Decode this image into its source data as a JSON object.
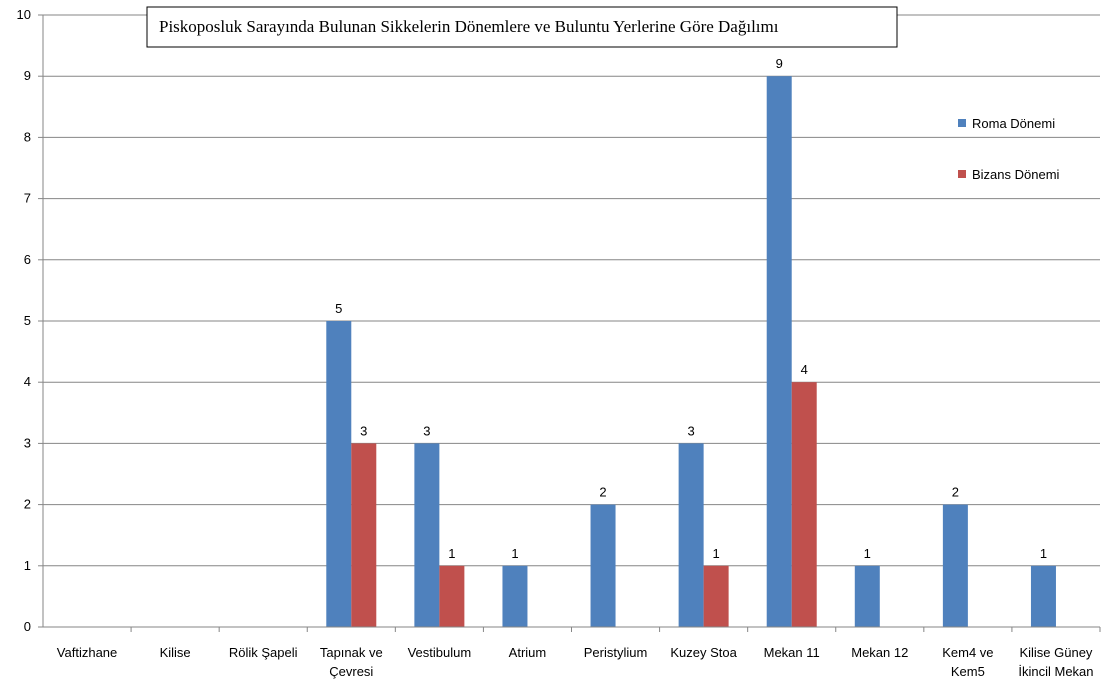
{
  "chart_data": {
    "type": "bar",
    "title": "Piskoposluk Sarayında Bulunan Sikkelerin Dönemlere ve Buluntu Yerlerine Göre Dağılımı",
    "categories": [
      [
        "Vaftizhane"
      ],
      [
        "Kilise"
      ],
      [
        "Rölik Şapeli"
      ],
      [
        "Tapınak ve",
        "Çevresi"
      ],
      [
        "Vestibulum"
      ],
      [
        "Atrium"
      ],
      [
        "Peristylium"
      ],
      [
        "Kuzey Stoa"
      ],
      [
        "Mekan 11"
      ],
      [
        "Mekan 12"
      ],
      [
        "Kem4 ve",
        "Kem5"
      ],
      [
        "Kilise Güney",
        "İkincil Mekan"
      ]
    ],
    "series": [
      {
        "name": "Roma Dönemi",
        "color": "#4f81bd",
        "values": [
          0,
          0,
          0,
          5,
          3,
          1,
          2,
          3,
          9,
          1,
          2,
          1
        ]
      },
      {
        "name": "Bizans Dönemi",
        "color": "#c0504d",
        "values": [
          0,
          0,
          0,
          3,
          1,
          0,
          0,
          1,
          4,
          0,
          0,
          0
        ]
      }
    ],
    "ylim": [
      0,
      10
    ],
    "yticks": [
      "0",
      "1",
      "2",
      "3",
      "4",
      "5",
      "6",
      "7",
      "8",
      "9",
      "10"
    ],
    "grid": true,
    "legend_position": "right"
  }
}
